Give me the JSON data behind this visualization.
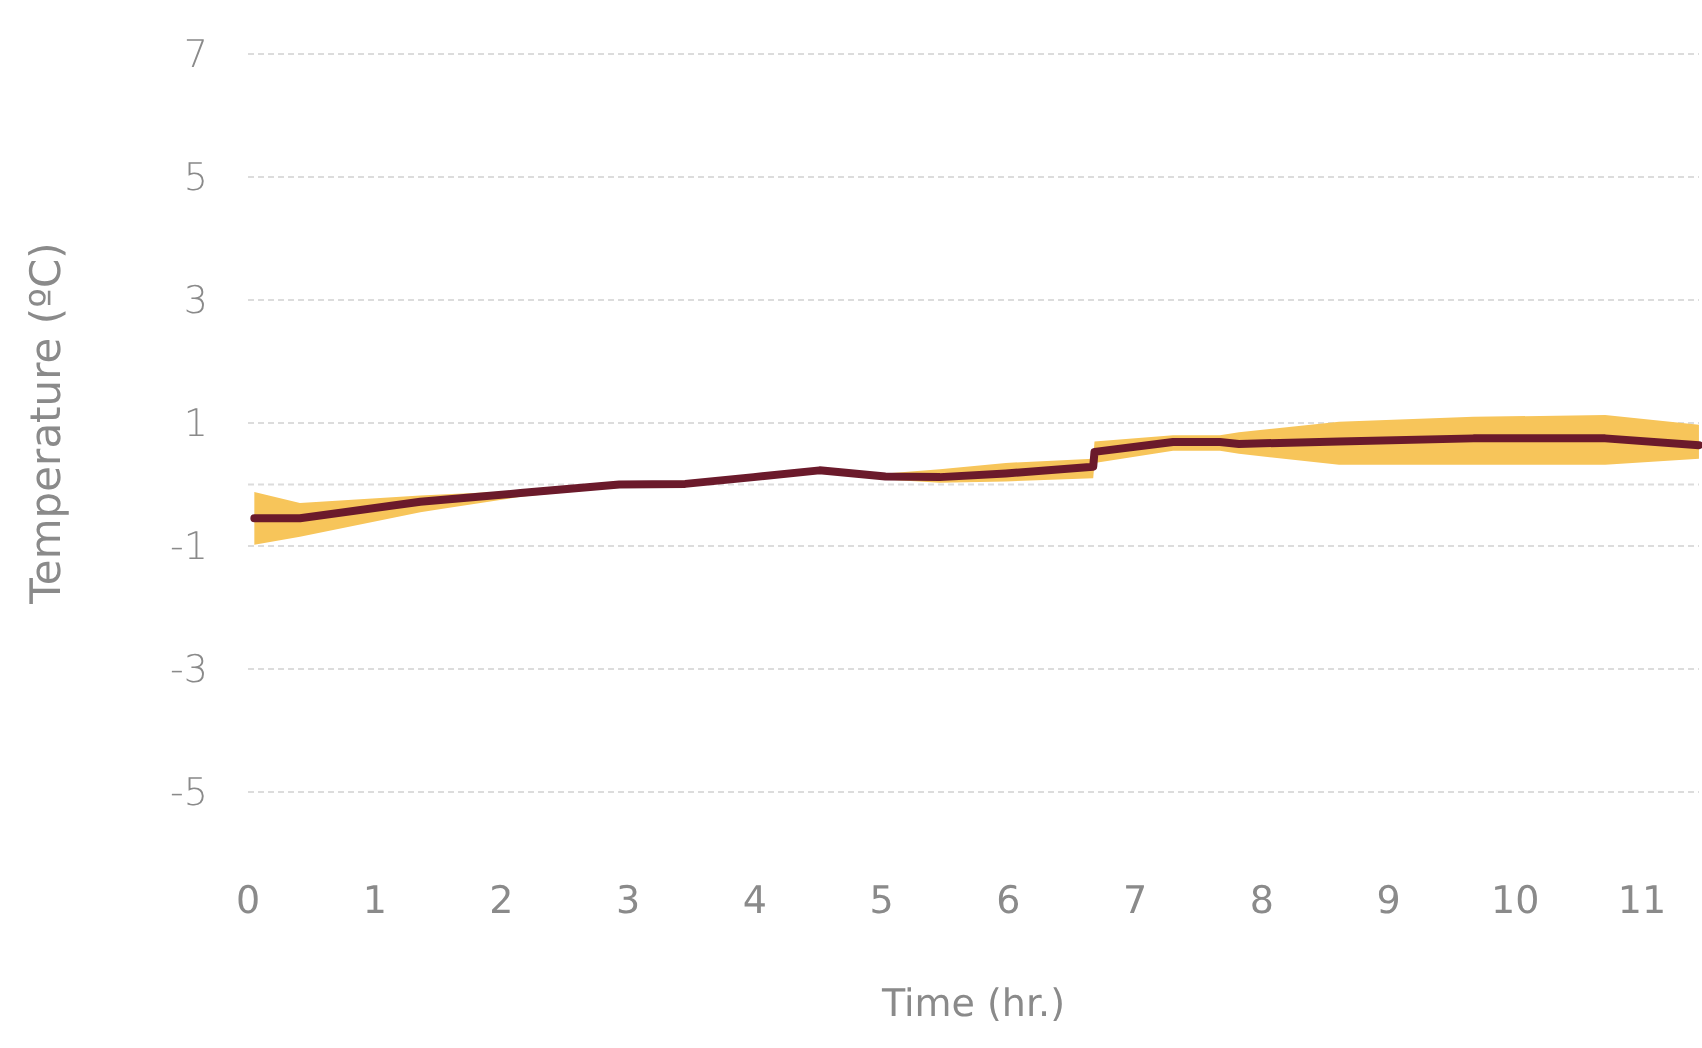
{
  "chart_data": {
    "type": "line",
    "xlabel": "Time (hr.)",
    "ylabel": "Temperature (ºC)",
    "xlim": [
      0,
      11.45
    ],
    "xticks": [
      0,
      1,
      2,
      3,
      4,
      5,
      6,
      7,
      8,
      9,
      10,
      11
    ],
    "ylim": [
      -5,
      7
    ],
    "yticks": [
      -5,
      -3,
      -1,
      {
        "value": 0,
        "label": null
      },
      1,
      3,
      5,
      7
    ],
    "grid": "y",
    "marker": "none",
    "line_style": "solid",
    "series": [
      {
        "color": "#6b1a2b",
        "x": [
          0.05,
          0.41,
          1.36,
          2.15,
          2.93,
          3.45,
          3.99,
          4.51,
          5.03,
          5.46,
          5.98,
          6.67,
          6.68,
          7.3,
          7.67,
          7.82,
          8.61,
          9.67,
          10.71,
          11.45
        ],
        "values": [
          -0.55,
          -0.55,
          -0.28,
          -0.14,
          0,
          0.01,
          0.12,
          0.23,
          0.13,
          0.12,
          0.18,
          0.29,
          0.53,
          0.69,
          0.69,
          0.66,
          0.7,
          0.75,
          0.75,
          0.64
        ],
        "lower": [
          -0.98,
          -0.85,
          -0.45,
          -0.2,
          -0.05,
          -0.04,
          0.07,
          0.18,
          0.08,
          0.03,
          0.05,
          0.1,
          0.35,
          0.55,
          0.55,
          0.5,
          0.32,
          0.32,
          0.32,
          0.42
        ],
        "upper": [
          -0.12,
          -0.3,
          -0.18,
          -0.1,
          0.05,
          0.06,
          0.17,
          0.28,
          0.18,
          0.25,
          0.35,
          0.42,
          0.7,
          0.8,
          0.8,
          0.85,
          1.02,
          1.1,
          1.13,
          0.97
        ]
      }
    ]
  }
}
